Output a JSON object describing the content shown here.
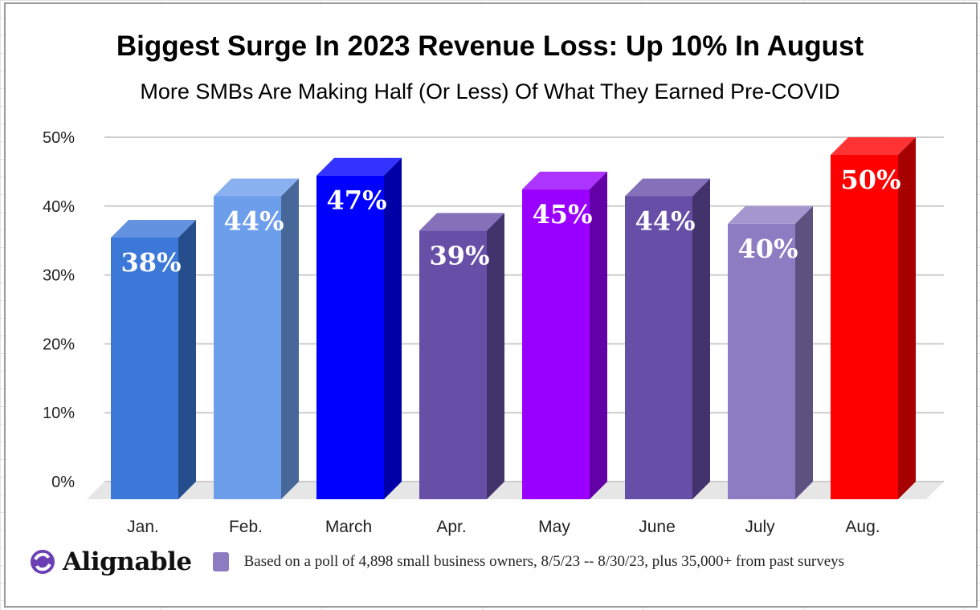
{
  "chart_data": {
    "type": "bar",
    "title": "Biggest Surge In 2023 Revenue Loss: Up 10% In August",
    "subtitle": "More SMBs Are Making Half (Or Less) Of What They Earned Pre-COVID",
    "categories": [
      "Jan.",
      "Feb.",
      "March",
      "Apr.",
      "May",
      "June",
      "July",
      "Aug."
    ],
    "values": [
      38,
      44,
      47,
      39,
      45,
      44,
      40,
      50
    ],
    "data_labels": [
      "38%",
      "44%",
      "47%",
      "39%",
      "45%",
      "44%",
      "40%",
      "50%"
    ],
    "colors": [
      "#3c78d8",
      "#6d9eeb",
      "#0000ff",
      "#674ea7",
      "#9900ff",
      "#674ea7",
      "#8e7cc3",
      "#ff0000"
    ],
    "yticks": [
      "0%",
      "10%",
      "20%",
      "30%",
      "40%",
      "50%"
    ],
    "ylim": [
      0,
      50
    ],
    "grid": true,
    "style": "3d",
    "legend": {
      "position": "bottom",
      "color": "#8e7cc3",
      "label": "Based on a poll of 4,898 small business owners, 8/5/23 -- 8/30/23, plus 35,000+ from past surveys"
    },
    "xlabel": "",
    "ylabel": ""
  },
  "logo": {
    "name": "Alignable",
    "icon": "alignable-logo-icon",
    "color": "#6a3fb5"
  }
}
